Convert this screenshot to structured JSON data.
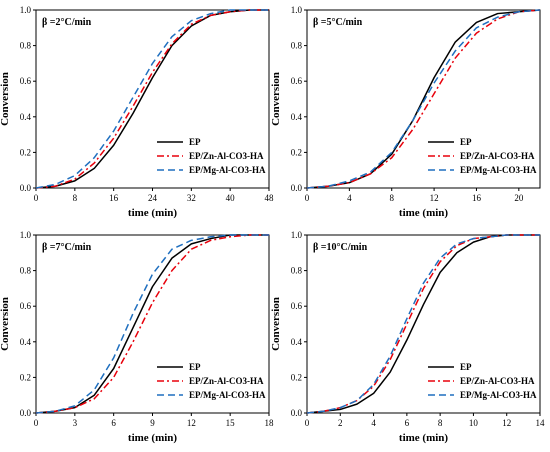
{
  "chart_data": [
    {
      "type": "line",
      "title": "β =2°C/min",
      "xlabel": "time (min)",
      "ylabel": "Conversion",
      "xlim": [
        0,
        48
      ],
      "ylim": [
        0,
        1
      ],
      "xticks": [
        "0",
        "8",
        "16",
        "24",
        "32",
        "40",
        "48"
      ],
      "yticks": [
        "0.0",
        "0.2",
        "0.4",
        "0.6",
        "0.8",
        "1.0"
      ],
      "legend_position": "lower-right",
      "series": [
        {
          "name": "EP",
          "color": "#000000",
          "style": "solid",
          "x": [
            0,
            4,
            8,
            12,
            16,
            20,
            24,
            28,
            32,
            36,
            40,
            44,
            48
          ],
          "y": [
            0.0,
            0.01,
            0.04,
            0.11,
            0.24,
            0.42,
            0.62,
            0.8,
            0.91,
            0.97,
            0.99,
            1.0,
            1.0
          ]
        },
        {
          "name": "EP/Zn-Al-CO3-HA",
          "color": "#e8000b",
          "style": "dashdot",
          "x": [
            0,
            4,
            8,
            12,
            16,
            20,
            24,
            28,
            32,
            36,
            40,
            44,
            48
          ],
          "y": [
            0.0,
            0.01,
            0.05,
            0.14,
            0.28,
            0.46,
            0.65,
            0.81,
            0.92,
            0.97,
            0.99,
            1.0,
            1.0
          ]
        },
        {
          "name": "EP/Mg-Al-CO3-HA",
          "color": "#1f6fbf",
          "style": "dashed",
          "x": [
            0,
            4,
            8,
            12,
            16,
            20,
            24,
            28,
            32,
            36,
            40,
            44,
            48
          ],
          "y": [
            0.0,
            0.02,
            0.07,
            0.17,
            0.32,
            0.51,
            0.7,
            0.85,
            0.94,
            0.98,
            1.0,
            1.0,
            1.0
          ]
        }
      ]
    },
    {
      "type": "line",
      "title": "β =5°C/min",
      "xlabel": "time (min)",
      "ylabel": "Conversion",
      "xlim": [
        0,
        22
      ],
      "ylim": [
        0,
        1
      ],
      "xticks": [
        "0",
        "4",
        "8",
        "12",
        "16",
        "20"
      ],
      "yticks": [
        "0.0",
        "0.2",
        "0.4",
        "0.6",
        "0.8",
        "1.0"
      ],
      "legend_position": "lower-right",
      "series": [
        {
          "name": "EP",
          "color": "#000000",
          "style": "solid",
          "x": [
            0,
            2,
            4,
            6,
            8,
            10,
            12,
            14,
            16,
            18,
            20,
            22
          ],
          "y": [
            0.0,
            0.01,
            0.03,
            0.08,
            0.19,
            0.38,
            0.62,
            0.82,
            0.93,
            0.98,
            0.99,
            1.0
          ]
        },
        {
          "name": "EP/Zn-Al-CO3-HA",
          "color": "#e8000b",
          "style": "dashdot",
          "x": [
            0,
            2,
            4,
            6,
            8,
            10,
            12,
            14,
            16,
            18,
            20,
            22
          ],
          "y": [
            0.0,
            0.01,
            0.03,
            0.08,
            0.17,
            0.33,
            0.53,
            0.73,
            0.87,
            0.95,
            0.99,
            1.0
          ]
        },
        {
          "name": "EP/Mg-Al-CO3-HA",
          "color": "#1f6fbf",
          "style": "dashed",
          "x": [
            0,
            2,
            4,
            6,
            8,
            10,
            12,
            14,
            16,
            18,
            20,
            22
          ],
          "y": [
            0.0,
            0.01,
            0.04,
            0.09,
            0.2,
            0.38,
            0.59,
            0.77,
            0.9,
            0.96,
            0.99,
            1.0
          ]
        }
      ]
    },
    {
      "type": "line",
      "title": "β =7°C/min",
      "xlabel": "time (min)",
      "ylabel": "Conversion",
      "xlim": [
        0,
        18
      ],
      "ylim": [
        0,
        1
      ],
      "xticks": [
        "0",
        "3",
        "6",
        "9",
        "12",
        "15",
        "18"
      ],
      "yticks": [
        "0.0",
        "0.2",
        "0.4",
        "0.6",
        "0.8",
        "1.0"
      ],
      "legend_position": "lower-right",
      "series": [
        {
          "name": "EP",
          "color": "#000000",
          "style": "solid",
          "x": [
            0,
            1.5,
            3,
            4.5,
            6,
            7.5,
            9,
            10.5,
            12,
            13.5,
            15,
            16.5,
            18
          ],
          "y": [
            0.0,
            0.01,
            0.03,
            0.1,
            0.25,
            0.48,
            0.71,
            0.87,
            0.95,
            0.98,
            1.0,
            1.0,
            1.0
          ]
        },
        {
          "name": "EP/Zn-Al-CO3-HA",
          "color": "#e8000b",
          "style": "dashdot",
          "x": [
            0,
            1.5,
            3,
            4.5,
            6,
            7.5,
            9,
            10.5,
            12,
            13.5,
            15,
            16.5,
            18
          ],
          "y": [
            0.0,
            0.01,
            0.03,
            0.08,
            0.2,
            0.4,
            0.62,
            0.8,
            0.92,
            0.97,
            0.99,
            1.0,
            1.0
          ]
        },
        {
          "name": "EP/Mg-Al-CO3-HA",
          "color": "#1f6fbf",
          "style": "dashed",
          "x": [
            0,
            1.5,
            3,
            4.5,
            6,
            7.5,
            9,
            10.5,
            12,
            13.5,
            15,
            16.5,
            18
          ],
          "y": [
            0.0,
            0.01,
            0.04,
            0.13,
            0.31,
            0.56,
            0.78,
            0.92,
            0.97,
            0.99,
            1.0,
            1.0,
            1.0
          ]
        }
      ]
    },
    {
      "type": "line",
      "title": "β =10°C/min",
      "xlabel": "time (min)",
      "ylabel": "Conversion",
      "xlim": [
        0,
        14
      ],
      "ylim": [
        0,
        1
      ],
      "xticks": [
        "0",
        "2",
        "4",
        "6",
        "8",
        "10",
        "12",
        "14"
      ],
      "yticks": [
        "0.0",
        "0.2",
        "0.4",
        "0.6",
        "0.8",
        "1.0"
      ],
      "legend_position": "lower-right",
      "series": [
        {
          "name": "EP",
          "color": "#000000",
          "style": "solid",
          "x": [
            0,
            1,
            2,
            3,
            4,
            5,
            6,
            7,
            8,
            9,
            10,
            11,
            12,
            13,
            14
          ],
          "y": [
            0.0,
            0.01,
            0.02,
            0.05,
            0.11,
            0.23,
            0.41,
            0.61,
            0.79,
            0.9,
            0.96,
            0.99,
            1.0,
            1.0,
            1.0
          ]
        },
        {
          "name": "EP/Zn-Al-CO3-HA",
          "color": "#e8000b",
          "style": "dashdot",
          "x": [
            0,
            1,
            2,
            3,
            4,
            5,
            6,
            7,
            8,
            9,
            10,
            11,
            12,
            13,
            14
          ],
          "y": [
            0.0,
            0.01,
            0.03,
            0.07,
            0.15,
            0.3,
            0.5,
            0.7,
            0.85,
            0.94,
            0.98,
            0.99,
            1.0,
            1.0,
            1.0
          ]
        },
        {
          "name": "EP/Mg-Al-CO3-HA",
          "color": "#1f6fbf",
          "style": "dashed",
          "x": [
            0,
            1,
            2,
            3,
            4,
            5,
            6,
            7,
            8,
            9,
            10,
            11,
            12,
            13,
            14
          ],
          "y": [
            0.0,
            0.01,
            0.03,
            0.07,
            0.16,
            0.32,
            0.53,
            0.73,
            0.87,
            0.95,
            0.98,
            0.99,
            1.0,
            1.0,
            1.0
          ]
        }
      ]
    }
  ]
}
